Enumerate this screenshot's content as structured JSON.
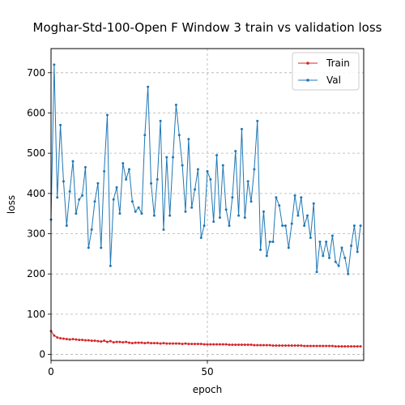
{
  "chart_data": {
    "type": "line",
    "title": "Moghar-Std-100-Open F Window 3 train vs validation loss",
    "xlabel": "epoch",
    "ylabel": "loss",
    "xlim": [
      0,
      100
    ],
    "ylim": [
      -15,
      760
    ],
    "xticks": [
      0,
      50
    ],
    "yticks": [
      0,
      100,
      200,
      300,
      400,
      500,
      600,
      700
    ],
    "grid": true,
    "legend_position": "top-right",
    "series": [
      {
        "name": "Train",
        "color": "#d62728",
        "values": [
          58,
          47,
          42,
          40,
          39,
          38,
          37,
          38,
          37,
          36,
          36,
          35,
          35,
          34,
          34,
          33,
          32,
          34,
          31,
          33,
          30,
          31,
          31,
          30,
          31,
          29,
          28,
          29,
          29,
          29,
          28,
          29,
          28,
          28,
          28,
          27,
          28,
          27,
          27,
          27,
          27,
          27,
          26,
          27,
          26,
          26,
          26,
          26,
          26,
          25,
          25,
          25,
          25,
          25,
          25,
          25,
          25,
          24,
          24,
          24,
          24,
          24,
          24,
          24,
          24,
          23,
          23,
          23,
          23,
          23,
          23,
          22,
          22,
          22,
          22,
          22,
          22,
          22,
          22,
          22,
          22,
          21,
          21,
          21,
          21,
          21,
          21,
          21,
          21,
          21,
          21,
          20,
          20,
          20,
          20,
          20,
          20,
          20,
          20,
          20
        ]
      },
      {
        "name": "Val",
        "color": "#1f77b4",
        "values": [
          335,
          720,
          390,
          570,
          430,
          320,
          405,
          480,
          350,
          385,
          395,
          465,
          265,
          310,
          380,
          425,
          265,
          455,
          595,
          220,
          385,
          415,
          350,
          475,
          435,
          460,
          380,
          355,
          365,
          350,
          545,
          665,
          425,
          345,
          435,
          580,
          310,
          490,
          345,
          490,
          620,
          545,
          470,
          355,
          535,
          365,
          410,
          460,
          290,
          320,
          455,
          435,
          330,
          495,
          340,
          470,
          360,
          320,
          390,
          505,
          345,
          560,
          340,
          430,
          380,
          460,
          580,
          260,
          355,
          245,
          280,
          280,
          390,
          370,
          320,
          320,
          265,
          325,
          395,
          345,
          390,
          320,
          345,
          290,
          375,
          205,
          280,
          245,
          280,
          240,
          295,
          230,
          220,
          265,
          240,
          200,
          270,
          320,
          255,
          320
        ]
      }
    ]
  }
}
